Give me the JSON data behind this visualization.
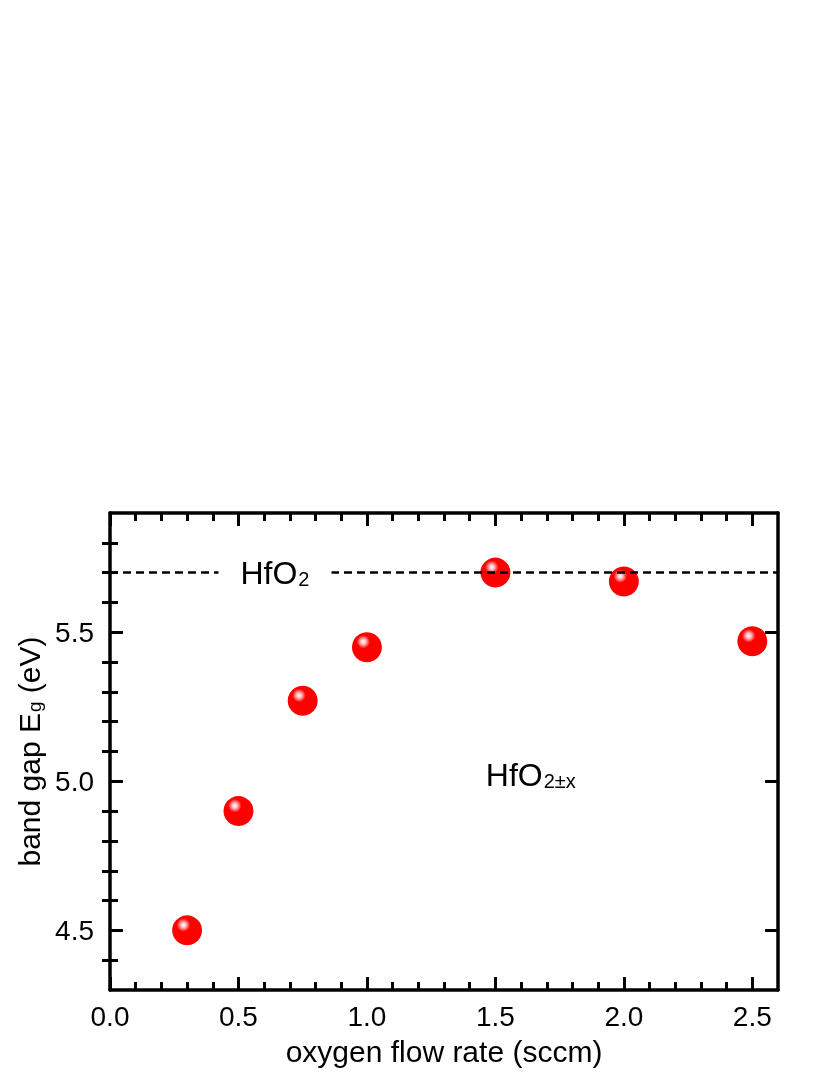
{
  "chart_data": {
    "type": "scatter",
    "xlabel": "oxygen flow rate (sccm)",
    "ylabel": "band gap E$_{g}$ (eV)",
    "x": [
      0.3,
      0.5,
      0.75,
      1.0,
      1.5,
      2.0,
      2.5
    ],
    "series": [
      {
        "color": "#ff0000",
        "values": [
          4.5,
          4.9,
          5.27,
          5.45,
          5.7,
          5.67,
          5.47
        ]
      }
    ],
    "xlim": [
      0,
      2.6
    ],
    "ylim": [
      4.3,
      5.9
    ],
    "xticks": [
      {
        "value": 0,
        "label": "0.0"
      },
      {
        "value": 0.1,
        "label": null
      },
      {
        "value": 0.2,
        "label": null
      },
      {
        "value": 0.3,
        "label": null
      },
      {
        "value": 0.4,
        "label": null
      },
      0.5,
      {
        "value": 0.6,
        "label": null
      },
      {
        "value": 0.7,
        "label": null
      },
      {
        "value": 0.8,
        "label": null
      },
      {
        "value": 0.9,
        "label": null
      },
      {
        "value": 1,
        "label": "1.0"
      },
      {
        "value": 1.1,
        "label": null
      },
      {
        "value": 1.2,
        "label": null
      },
      {
        "value": 1.3,
        "label": null
      },
      {
        "value": 1.4,
        "label": null
      },
      1.5,
      {
        "value": 1.6,
        "label": null
      },
      {
        "value": 1.7,
        "label": null
      },
      {
        "value": 1.8,
        "label": null
      },
      {
        "value": 1.9,
        "label": null
      },
      {
        "value": 2,
        "label": "2.0"
      },
      {
        "value": 2.1,
        "label": null
      },
      {
        "value": 2.2,
        "label": null
      },
      {
        "value": 2.3,
        "label": null
      },
      {
        "value": 2.4,
        "label": null
      },
      2.5
    ],
    "yticks": [
      {
        "value": 4.4,
        "label": null
      },
      4.5,
      {
        "value": 4.6,
        "label": null
      },
      {
        "value": 4.7,
        "label": null
      },
      {
        "value": 4.8,
        "label": null
      },
      {
        "value": 4.9,
        "label": null
      },
      {
        "value": 5,
        "label": "5.0"
      },
      {
        "value": 5.1,
        "label": null
      },
      {
        "value": 5.2,
        "label": null
      },
      {
        "value": 5.3,
        "label": null
      },
      {
        "value": 5.4,
        "label": null
      },
      5.5,
      {
        "value": 5.6,
        "label": null
      },
      {
        "value": 5.7,
        "label": null
      },
      {
        "value": 5.8,
        "label": null
      }
    ],
    "ref_lines": [
      {
        "axis": "y",
        "value": 5.7,
        "label": "HfO$_{2}$",
        "color": "#000000",
        "line_style": "dashed"
      }
    ],
    "annotations": [
      "HfO$_{2±x}$"
    ],
    "marker": "circle"
  }
}
